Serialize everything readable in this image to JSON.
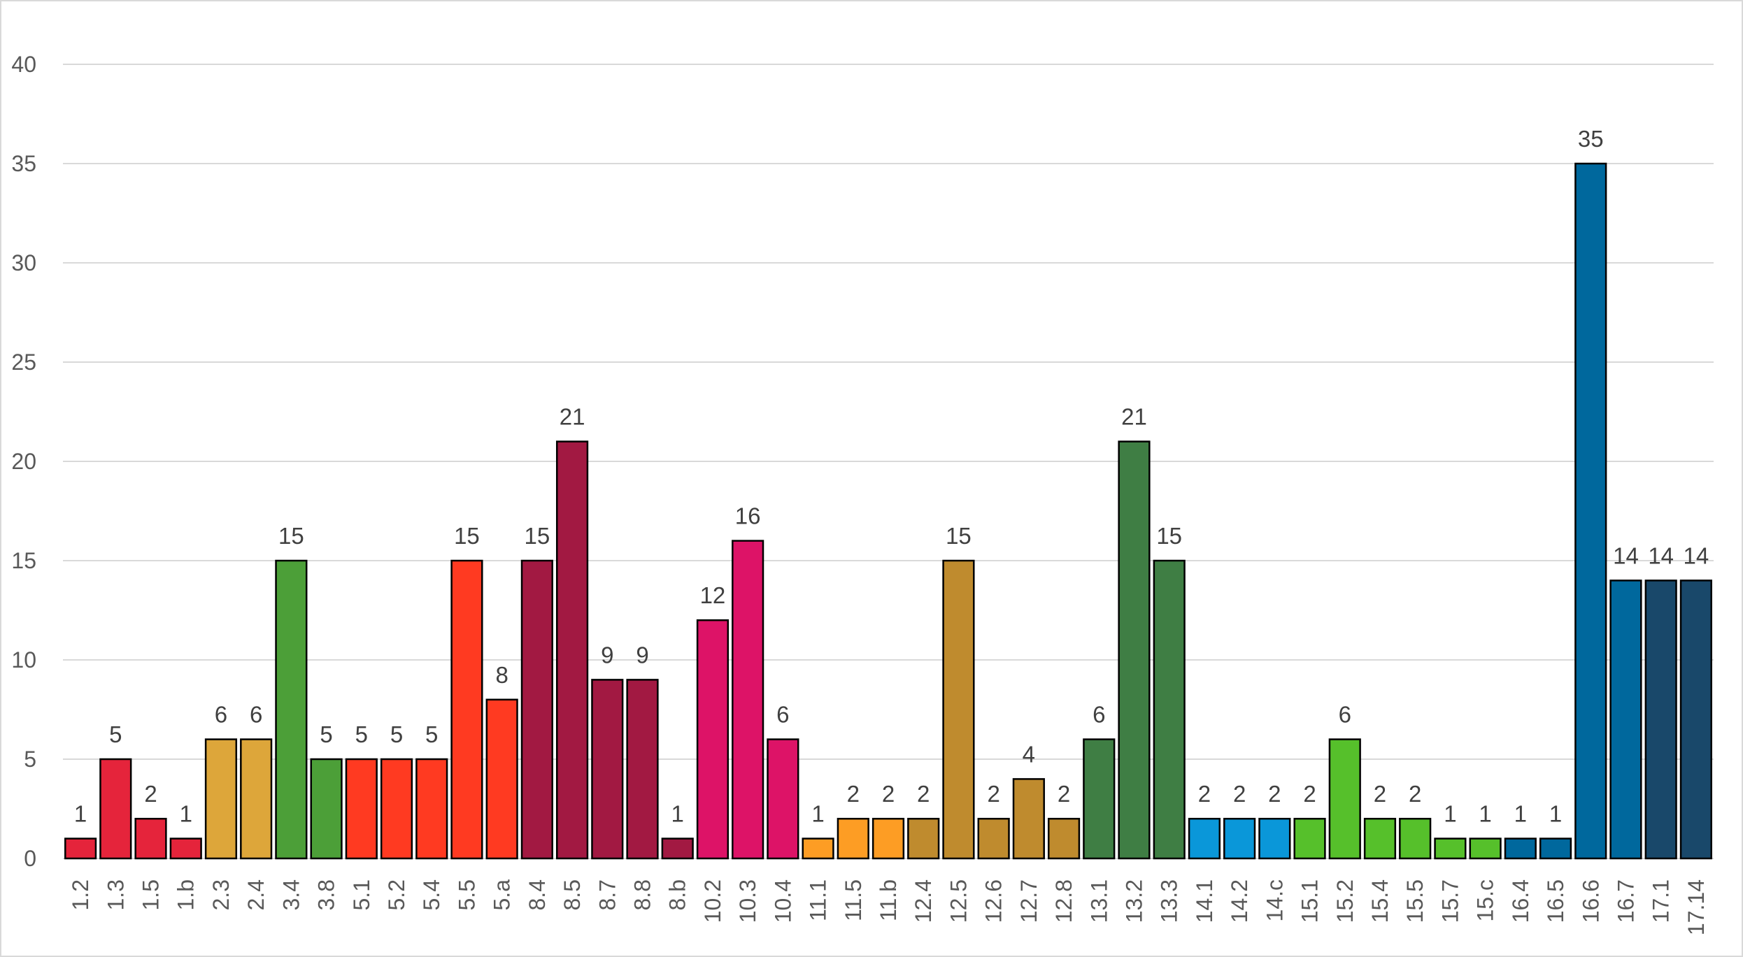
{
  "chart_data": {
    "type": "bar",
    "title": "",
    "xlabel": "",
    "ylabel": "",
    "ylim": [
      0,
      40
    ],
    "yticks": [
      0,
      5,
      10,
      15,
      20,
      25,
      30,
      35,
      40
    ],
    "grid": true,
    "legend": "none",
    "categories": [
      "1.2",
      "1.3",
      "1.5",
      "1.b",
      "2.3",
      "2.4",
      "3.4",
      "3.8",
      "5.1",
      "5.2",
      "5.4",
      "5.5",
      "5.a",
      "8.4",
      "8.5",
      "8.7",
      "8.8",
      "8.b",
      "10.2",
      "10.3",
      "10.4",
      "11.1",
      "11.5",
      "11.b",
      "12.4",
      "12.5",
      "12.6",
      "12.7",
      "12.8",
      "13.1",
      "13.2",
      "13.3",
      "14.1",
      "14.2",
      "14.c",
      "15.1",
      "15.2",
      "15.4",
      "15.5",
      "15.7",
      "15.c",
      "16.4",
      "16.5",
      "16.6",
      "16.7",
      "17.1",
      "17.14"
    ],
    "values": [
      1,
      5,
      2,
      1,
      6,
      6,
      15,
      5,
      5,
      5,
      5,
      15,
      8,
      15,
      21,
      9,
      9,
      1,
      12,
      16,
      6,
      1,
      2,
      2,
      2,
      15,
      2,
      4,
      2,
      6,
      21,
      15,
      2,
      2,
      2,
      2,
      6,
      2,
      2,
      1,
      1,
      1,
      1,
      35,
      14,
      14,
      14
    ],
    "colors": [
      "#e5243b",
      "#e5243b",
      "#e5243b",
      "#e5243b",
      "#dda63a",
      "#dda63a",
      "#4c9f38",
      "#4c9f38",
      "#ff3a21",
      "#ff3a21",
      "#ff3a21",
      "#ff3a21",
      "#ff3a21",
      "#a21942",
      "#a21942",
      "#a21942",
      "#a21942",
      "#a21942",
      "#dd1367",
      "#dd1367",
      "#dd1367",
      "#fd9d24",
      "#fd9d24",
      "#fd9d24",
      "#bf8b2e",
      "#bf8b2e",
      "#bf8b2e",
      "#bf8b2e",
      "#bf8b2e",
      "#3f7e44",
      "#3f7e44",
      "#3f7e44",
      "#0a97d9",
      "#0a97d9",
      "#0a97d9",
      "#56c02b",
      "#56c02b",
      "#56c02b",
      "#56c02b",
      "#56c02b",
      "#56c02b",
      "#00689d",
      "#00689d",
      "#00689d",
      "#00689d",
      "#19486a",
      "#19486a"
    ]
  }
}
